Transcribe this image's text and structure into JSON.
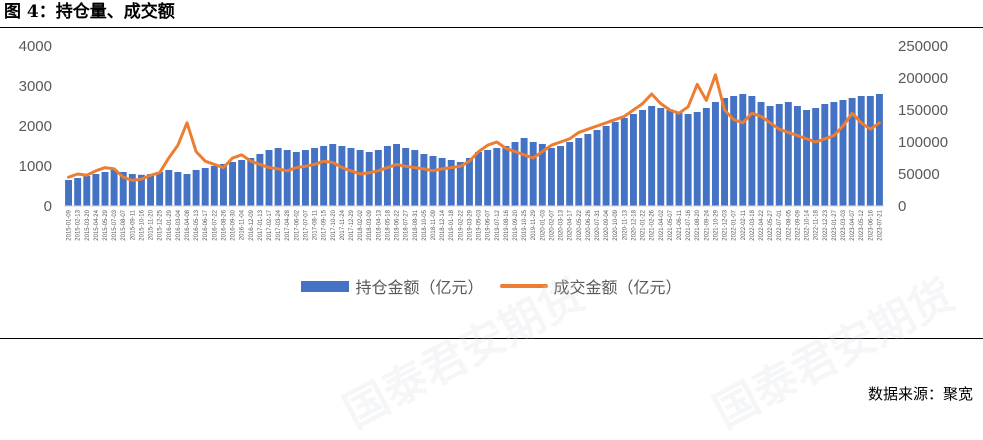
{
  "header": {
    "title": "图 4：持仓量、成交额"
  },
  "footer": {
    "source": "数据来源：聚宽"
  },
  "watermark": {
    "text": "国泰君安期货"
  },
  "colors": {
    "bars": "#4472C4",
    "line": "#ED7D31",
    "tick": "#595959"
  },
  "chart_data": {
    "type": "bar+line",
    "title": "",
    "legend_position": "bottom",
    "grid": false,
    "x": [
      "2015-01-09",
      "2015-02-13",
      "2015-03-20",
      "2015-04-24",
      "2015-05-29",
      "2015-07-03",
      "2015-08-07",
      "2015-09-11",
      "2015-10-16",
      "2015-11-20",
      "2015-12-25",
      "2016-01-29",
      "2016-03-04",
      "2016-04-08",
      "2016-05-13",
      "2016-06-17",
      "2016-07-22",
      "2016-08-26",
      "2016-09-30",
      "2016-11-04",
      "2016-12-09",
      "2017-01-13",
      "2017-02-17",
      "2017-03-24",
      "2017-04-28",
      "2017-06-02",
      "2017-07-07",
      "2017-08-11",
      "2017-09-15",
      "2017-10-20",
      "2017-11-24",
      "2017-12-29",
      "2018-02-02",
      "2018-03-09",
      "2018-04-13",
      "2018-05-18",
      "2018-06-22",
      "2018-07-27",
      "2018-08-31",
      "2018-10-05",
      "2018-11-09",
      "2018-12-14",
      "2019-01-18",
      "2019-02-22",
      "2019-03-29",
      "2019-05-03",
      "2019-06-07",
      "2019-07-12",
      "2019-08-16",
      "2019-09-20",
      "2019-10-25",
      "2019-11-29",
      "2020-01-03",
      "2020-02-07",
      "2020-03-13",
      "2020-04-17",
      "2020-05-22",
      "2020-06-26",
      "2020-07-31",
      "2020-09-04",
      "2020-10-09",
      "2020-11-13",
      "2020-12-18",
      "2021-01-22",
      "2021-02-26",
      "2021-04-02",
      "2021-05-07",
      "2021-06-11",
      "2021-07-16",
      "2021-08-20",
      "2021-09-24",
      "2021-10-29",
      "2021-12-03",
      "2022-01-07",
      "2022-02-11",
      "2022-03-18",
      "2022-04-22",
      "2022-05-27",
      "2022-07-01",
      "2022-08-05",
      "2022-09-09",
      "2022-10-14",
      "2022-11-18",
      "2022-12-23",
      "2023-01-27",
      "2023-03-03",
      "2023-04-07",
      "2023-05-12",
      "2023-06-16",
      "2023-07-21"
    ],
    "x_tick_labels": [
      "2015-01-09",
      "2015-02-13",
      "2015-03-20",
      "2015-04-24",
      "2015-05-29",
      "2015-07-03",
      "2015-08-07",
      "2015-09-11",
      "2015-10-16",
      "2015-11-20",
      "2015-12-25",
      "2016-01-29",
      "2016-03-04",
      "2016-04-08",
      "2016-05-13",
      "2016-06-17",
      "2016-07-22",
      "2016-08-26",
      "2016-09-30",
      "2016-11-04",
      "2016-12-09",
      "2017-01-13",
      "2017-02-17",
      "2017-03-24",
      "2017-04-28",
      "2017-06-02",
      "2017-07-07",
      "2017-08-11",
      "2017-09-15",
      "2017-10-20",
      "2017-11-24",
      "2017-12-29",
      "2018-02-02",
      "2018-03-09",
      "2018-04-13",
      "2018-05-18",
      "2018-06-22",
      "2018-07-27",
      "2018-08-31",
      "2018-10-05",
      "2018-11-09",
      "2018-12-14",
      "2019-01-18",
      "2019-02-22",
      "2019-03-29",
      "2019-05-03",
      "2019-06-07",
      "2019-07-12",
      "2019-08-16",
      "2019-09-20",
      "2019-10-25",
      "2019-11-29",
      "2020-01-03",
      "2020-02-07",
      "2020-03-13",
      "2020-04-17",
      "2020-05-22",
      "2020-06-26",
      "2020-07-31",
      "2020-09-04",
      "2020-10-09",
      "2020-11-13",
      "2020-12-18",
      "2021-01-22",
      "2021-02-26",
      "2021-04-02",
      "2021-05-07",
      "2021-06-11",
      "2021-07-16",
      "2021-08-20",
      "2021-09-24",
      "2021-10-29",
      "2021-12-03",
      "2022-01-07",
      "2022-02-11",
      "2022-03-18",
      "2022-04-22",
      "2022-05-27",
      "2022-07-01",
      "2022-08-05",
      "2022-09-09",
      "2022-10-14",
      "2022-11-18",
      "2022-12-23",
      "2023-01-27",
      "2023-03-03",
      "2023-04-07",
      "2023-05-12",
      "2023-06-16",
      "2023-07-21"
    ],
    "y_left": {
      "ylim": [
        0,
        4000
      ],
      "ticks": [
        "0",
        "1000",
        "2000",
        "3000",
        "4000"
      ]
    },
    "y_right": {
      "ylim": [
        0,
        250000
      ],
      "ticks": [
        "0",
        "50000",
        "100000",
        "150000",
        "200000",
        "250000"
      ]
    },
    "series": [
      {
        "name": "持仓金额（亿元）",
        "type": "bar",
        "axis": "left",
        "values": [
          650,
          700,
          750,
          800,
          850,
          900,
          850,
          800,
          780,
          800,
          850,
          900,
          850,
          800,
          900,
          950,
          1000,
          1050,
          1100,
          1150,
          1200,
          1300,
          1400,
          1450,
          1400,
          1350,
          1400,
          1450,
          1500,
          1550,
          1500,
          1450,
          1400,
          1350,
          1400,
          1500,
          1550,
          1450,
          1400,
          1300,
          1250,
          1200,
          1150,
          1100,
          1200,
          1350,
          1400,
          1450,
          1500,
          1600,
          1700,
          1600,
          1550,
          1450,
          1500,
          1600,
          1700,
          1800,
          1900,
          2000,
          2100,
          2200,
          2300,
          2400,
          2500,
          2450,
          2400,
          2350,
          2300,
          2350,
          2450,
          2600,
          2700,
          2750,
          2800,
          2750,
          2600,
          2500,
          2550,
          2600,
          2500,
          2400,
          2450,
          2550,
          2600,
          2650,
          2700,
          2750,
          2750,
          2800
        ]
      },
      {
        "name": "成交金额（亿元）",
        "type": "line",
        "axis": "right",
        "values": [
          45000,
          50000,
          48000,
          55000,
          60000,
          58000,
          45000,
          40000,
          42000,
          48000,
          52000,
          75000,
          95000,
          130000,
          85000,
          70000,
          65000,
          60000,
          75000,
          80000,
          70000,
          65000,
          60000,
          58000,
          55000,
          60000,
          62000,
          65000,
          70000,
          68000,
          60000,
          55000,
          50000,
          52000,
          55000,
          60000,
          65000,
          62000,
          60000,
          58000,
          55000,
          58000,
          60000,
          62000,
          70000,
          85000,
          95000,
          100000,
          90000,
          85000,
          80000,
          75000,
          85000,
          95000,
          100000,
          105000,
          115000,
          120000,
          125000,
          130000,
          135000,
          140000,
          150000,
          160000,
          175000,
          160000,
          150000,
          145000,
          155000,
          190000,
          165000,
          205000,
          150000,
          135000,
          130000,
          145000,
          140000,
          130000,
          120000,
          115000,
          110000,
          105000,
          100000,
          105000,
          110000,
          125000,
          145000,
          130000,
          120000,
          130000
        ]
      }
    ]
  },
  "legend": {
    "bar_label": "持仓金额（亿元）",
    "line_label": "成交金额（亿元）"
  }
}
